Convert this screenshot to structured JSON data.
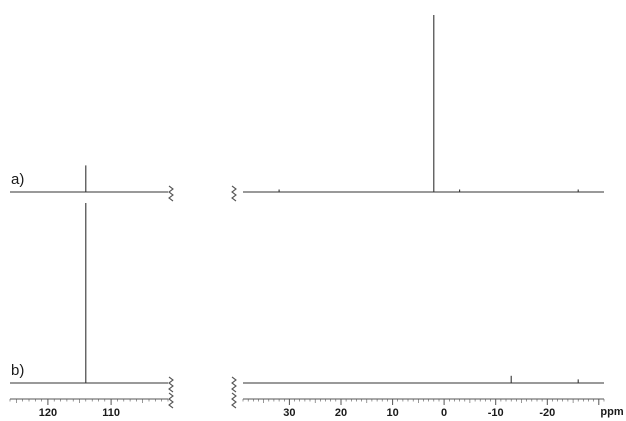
{
  "chart_data": {
    "type": "line",
    "title": "",
    "xlabel": "ppm",
    "ylabel": "",
    "axis_breaks": "yes",
    "x_segments": [
      {
        "name": "left",
        "xlim": [
          126,
          101
        ],
        "tick_labels": [
          "120",
          "110"
        ]
      },
      {
        "name": "right",
        "xlim": [
          39,
          -31
        ],
        "tick_labels": [
          "30",
          "20",
          "10",
          "0",
          "-10",
          "-20"
        ]
      }
    ],
    "spectra": [
      {
        "label": "a)",
        "peaks": [
          {
            "ppm": 114,
            "intensity": 0.15
          },
          {
            "ppm": 2,
            "intensity": 1.0
          },
          {
            "ppm": 32,
            "intensity": 0.01
          },
          {
            "ppm": -3,
            "intensity": 0.01
          },
          {
            "ppm": -26,
            "intensity": 0.01
          }
        ]
      },
      {
        "label": "b)",
        "peaks": [
          {
            "ppm": 114,
            "intensity": 1.0
          },
          {
            "ppm": -13,
            "intensity": 0.04
          },
          {
            "ppm": -26,
            "intensity": 0.02
          }
        ]
      }
    ],
    "colors": {
      "trace": "#333333",
      "ticks": "#555555",
      "text": "#1a1a1a"
    }
  }
}
